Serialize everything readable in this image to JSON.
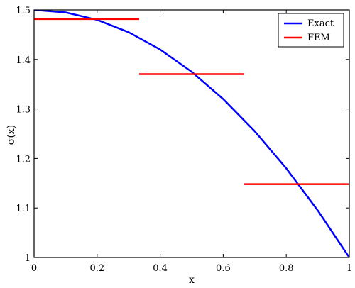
{
  "chart_data": {
    "type": "line",
    "title": "",
    "xlabel": "x",
    "ylabel": "σ(x)",
    "xlim": [
      0,
      1
    ],
    "ylim": [
      1,
      1.5
    ],
    "xticks": [
      0,
      0.2,
      0.4,
      0.6,
      0.8,
      1
    ],
    "xtick_labels": [
      "0",
      "0.2",
      "0.4",
      "0.6",
      "0.8",
      "1"
    ],
    "yticks": [
      1,
      1.1,
      1.2,
      1.3,
      1.4,
      1.5
    ],
    "ytick_labels": [
      "1",
      "1.1",
      "1.2",
      "1.3",
      "1.4",
      "1.5"
    ],
    "grid": false,
    "legend_position": "top-right",
    "series": [
      {
        "name": "Exact",
        "color": "#0000ff",
        "kind": "curve",
        "x": [
          0,
          0.1,
          0.2,
          0.3,
          0.4,
          0.5,
          0.6,
          0.7,
          0.8,
          0.9,
          1.0
        ],
        "y": [
          1.5,
          1.495,
          1.48,
          1.455,
          1.42,
          1.375,
          1.32,
          1.255,
          1.18,
          1.095,
          1.0
        ]
      },
      {
        "name": "FEM",
        "color": "#ff0000",
        "kind": "piecewise-constant",
        "segments": [
          {
            "x0": 0.0,
            "x1": 0.3333,
            "y": 1.4815
          },
          {
            "x0": 0.3333,
            "x1": 0.6667,
            "y": 1.3704
          },
          {
            "x0": 0.6667,
            "x1": 1.0,
            "y": 1.1481
          }
        ]
      }
    ]
  }
}
